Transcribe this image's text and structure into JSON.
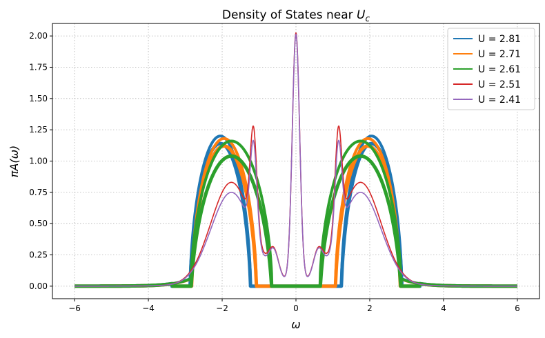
{
  "chart_data": {
    "type": "line",
    "title": "Density of States near U_c",
    "title_display": {
      "prefix": "Density of States near ",
      "var": "U",
      "sub": "c"
    },
    "xlabel": "ω",
    "ylabel": "πA(ω)",
    "xlim": [
      -6.6,
      6.6
    ],
    "ylim": [
      -0.1,
      2.1
    ],
    "xticks": [
      -6,
      -4,
      -2,
      0,
      2,
      4,
      6
    ],
    "xtick_labels": [
      "−6",
      "−4",
      "−2",
      "0",
      "2",
      "4",
      "6"
    ],
    "yticks": [
      0.0,
      0.25,
      0.5,
      0.75,
      1.0,
      1.25,
      1.5,
      1.75,
      2.0
    ],
    "ytick_labels": [
      "0.00",
      "0.25",
      "0.50",
      "0.75",
      "1.00",
      "1.25",
      "1.50",
      "1.75",
      "2.00"
    ],
    "grid": true,
    "grid_style": "dotted",
    "legend_position": "top-right",
    "series": [
      {
        "name": "U = 2.81",
        "color": "#1f77b4",
        "kind": "insulating-band",
        "band_center": 2.05,
        "band_half_width": 0.82,
        "band_peak": 1.2,
        "thickness": 0.06,
        "x_range": [
          -6,
          6
        ]
      },
      {
        "name": "U = 2.71",
        "color": "#ff7f0e",
        "kind": "insulating-band",
        "band_center": 1.95,
        "band_half_width": 0.88,
        "band_peak": 1.18,
        "thickness": 0.06,
        "x_range": [
          -6,
          6
        ]
      },
      {
        "name": "U = 2.61",
        "color": "#2ca02c",
        "kind": "insulating-band",
        "band_center": 1.75,
        "band_half_width": 1.1,
        "band_peak": 1.16,
        "thickness": 0.12,
        "x_range": [
          -6,
          6
        ]
      },
      {
        "name": "U = 2.51",
        "color": "#d62728",
        "kind": "metallic",
        "quasiparticle_peak": 2.0,
        "qp_width": 0.1,
        "kink_peak_x": 1.15,
        "kink_peak_y": 1.36,
        "hubbard_x": 1.75,
        "hubbard_y": 0.81,
        "x_range": [
          -6,
          6
        ]
      },
      {
        "name": "U = 2.41",
        "color": "#9467bd",
        "kind": "metallic",
        "quasiparticle_peak": 1.99,
        "qp_width": 0.1,
        "kink_peak_x": 1.15,
        "kink_peak_y": 1.29,
        "hubbard_x": 1.75,
        "hubbard_y": 0.73,
        "x_range": [
          -6,
          6
        ]
      }
    ]
  }
}
